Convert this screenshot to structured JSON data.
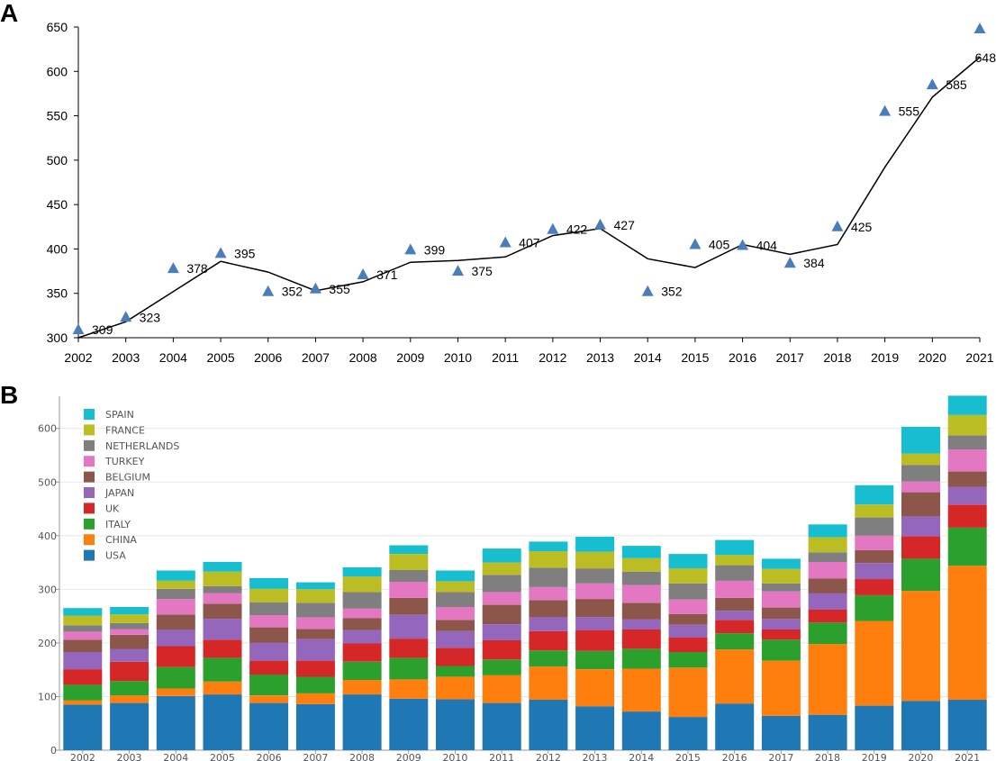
{
  "panel_labels": [
    "A",
    "B"
  ],
  "chart_data": [
    {
      "type": "line",
      "panel": "A",
      "title": "",
      "xlabel": "",
      "ylabel": "",
      "x": [
        "2002",
        "2003",
        "2004",
        "2005",
        "2006",
        "2007",
        "2008",
        "2009",
        "2010",
        "2011",
        "2012",
        "2013",
        "2014",
        "2015",
        "2016",
        "2017",
        "2018",
        "2019",
        "2020",
        "2021"
      ],
      "ylim": [
        300,
        650
      ],
      "yticks": [
        300,
        350,
        400,
        450,
        500,
        550,
        600,
        650
      ],
      "grid": false,
      "series": [
        {
          "name": "annual count",
          "marker": "triangle",
          "color": "#4a7ebb",
          "values": [
            309,
            323,
            378,
            395,
            352,
            355,
            371,
            399,
            375,
            407,
            422,
            427,
            352,
            405,
            404,
            384,
            425,
            555,
            585,
            648
          ]
        },
        {
          "name": "trend line",
          "marker": "none",
          "color": "#000000",
          "values": [
            300,
            318,
            352,
            386,
            374,
            353,
            363,
            385,
            387,
            391,
            415,
            423,
            389,
            379,
            405,
            394,
            405,
            492,
            571,
            616
          ]
        }
      ]
    },
    {
      "type": "bar",
      "stacked": true,
      "panel": "B",
      "title": "",
      "xlabel": "",
      "ylabel": "",
      "legend_position": "top-left",
      "ylim": [
        0,
        660
      ],
      "yticks": [
        0,
        100,
        200,
        300,
        400,
        500,
        600
      ],
      "grid": true,
      "categories": [
        "2002",
        "2003",
        "2004",
        "2005",
        "2006",
        "2007",
        "2008",
        "2009",
        "2010",
        "2011",
        "2012",
        "2013",
        "2014",
        "2015",
        "2016",
        "2017",
        "2018",
        "2019",
        "2020",
        "2021"
      ],
      "series": [
        {
          "name": "USA",
          "color": "#1f77b4",
          "values": [
            85,
            88,
            101,
            104,
            88,
            86,
            104,
            96,
            95,
            88,
            94,
            82,
            72,
            62,
            87,
            64,
            66,
            83,
            92,
            94
          ]
        },
        {
          "name": "CHINA",
          "color": "#ff7f0e",
          "values": [
            8,
            14,
            14,
            24,
            14,
            20,
            27,
            36,
            42,
            52,
            62,
            69,
            80,
            92,
            101,
            103,
            132,
            158,
            205,
            250
          ]
        },
        {
          "name": "ITALY",
          "color": "#2ca02c",
          "values": [
            29,
            27,
            40,
            44,
            39,
            31,
            34,
            40,
            20,
            29,
            30,
            34,
            37,
            29,
            30,
            39,
            40,
            48,
            60,
            71
          ]
        },
        {
          "name": "UK",
          "color": "#d62728",
          "values": [
            29,
            36,
            39,
            34,
            26,
            30,
            34,
            36,
            34,
            36,
            36,
            39,
            36,
            27,
            25,
            19,
            24,
            30,
            42,
            43
          ]
        },
        {
          "name": "JAPAN",
          "color": "#9467bd",
          "values": [
            32,
            24,
            31,
            39,
            33,
            40,
            25,
            45,
            31,
            30,
            26,
            24,
            19,
            24,
            17,
            20,
            31,
            30,
            37,
            33
          ]
        },
        {
          "name": "BELGIUM",
          "color": "#8c564b",
          "values": [
            23,
            26,
            28,
            28,
            29,
            19,
            22,
            31,
            21,
            36,
            32,
            34,
            31,
            20,
            24,
            21,
            27,
            24,
            45,
            29
          ]
        },
        {
          "name": "TURKEY",
          "color": "#e377c2",
          "values": [
            15,
            11,
            29,
            20,
            23,
            22,
            18,
            30,
            24,
            24,
            24,
            29,
            33,
            27,
            32,
            30,
            31,
            27,
            20,
            41
          ]
        },
        {
          "name": "NETHERLANDS",
          "color": "#7f7f7f",
          "values": [
            12,
            11,
            19,
            13,
            24,
            27,
            31,
            22,
            28,
            32,
            36,
            28,
            25,
            30,
            29,
            15,
            18,
            34,
            31,
            26
          ]
        },
        {
          "name": "FRANCE",
          "color": "#bcbd22",
          "values": [
            18,
            16,
            15,
            27,
            25,
            25,
            29,
            30,
            20,
            23,
            31,
            31,
            25,
            28,
            19,
            27,
            28,
            24,
            21,
            38
          ]
        },
        {
          "name": "SPAIN",
          "color": "#17becf",
          "values": [
            14,
            14,
            19,
            18,
            20,
            13,
            17,
            16,
            20,
            26,
            18,
            28,
            23,
            27,
            28,
            19,
            24,
            36,
            50,
            36
          ]
        }
      ]
    }
  ]
}
